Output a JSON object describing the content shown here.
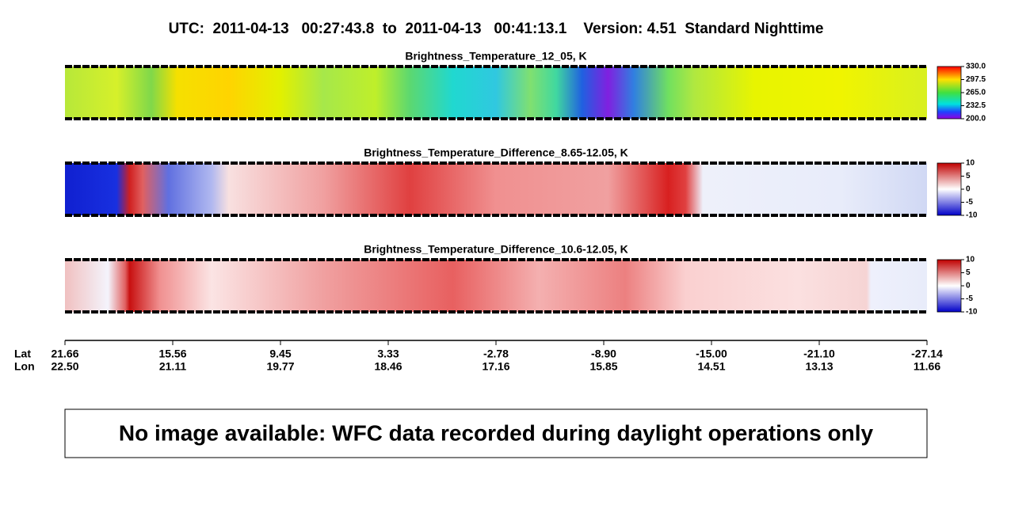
{
  "header": {
    "title": "UTC:  2011-04-13   00:27:43.8  to  2011-04-13   00:41:13.1    Version: 4.51  Standard Nighttime"
  },
  "panels": [
    {
      "title": "Brightness_Temperature_12_05, K",
      "colorbar": [
        "330.0",
        "297.5",
        "265.0",
        "232.5",
        "200.0"
      ]
    },
    {
      "title": "Brightness_Temperature_Difference_8.65-12.05, K",
      "colorbar": [
        "10",
        "5",
        "0",
        "-5",
        "-10"
      ]
    },
    {
      "title": "Brightness_Temperature_Difference_10.6-12.05, K",
      "colorbar": [
        "10",
        "5",
        "0",
        "-5",
        "-10"
      ]
    }
  ],
  "axis": {
    "lat_label": "Lat",
    "lon_label": "Lon",
    "lat": [
      "21.66",
      "15.56",
      "9.45",
      "3.33",
      "-2.78",
      "-8.90",
      "-15.00",
      "-21.10",
      "-27.14"
    ],
    "lon": [
      "22.50",
      "21.11",
      "19.77",
      "18.46",
      "17.16",
      "15.85",
      "14.51",
      "13.13",
      "11.66"
    ]
  },
  "message": "No image available: WFC data recorded during daylight operations only"
}
